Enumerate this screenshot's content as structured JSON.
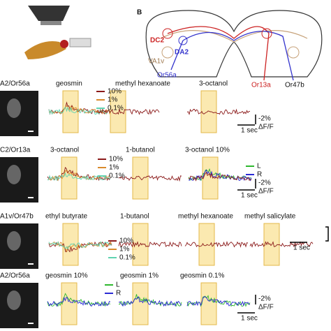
{
  "panel_b": {
    "letter": "B",
    "labels": [
      "DC2",
      "DA2",
      "VA1v",
      "Or56a",
      "Or13a",
      "Or47b"
    ]
  },
  "rows": [
    {
      "label": "A2/Or56a",
      "stimuli": [
        "geosmin",
        "methyl hexanoate",
        "3-octanol"
      ],
      "legend": [
        "10%",
        "1%",
        "0.1%"
      ],
      "scale": [
        "-2%",
        "ΔF/F"
      ],
      "time": "1 sec"
    },
    {
      "label": "C2/Or13a",
      "stimuli": [
        "3-octanol",
        "1-butanol",
        "3-octanol 10%"
      ],
      "legend": [
        "10%",
        "1%",
        "0.1%"
      ],
      "lr": [
        "L",
        "R"
      ],
      "scale": [
        "-2%",
        "ΔF/F"
      ],
      "time": "1 sec"
    },
    {
      "label": "A1v/Or47b",
      "stimuli": [
        "ethyl butyrate",
        "1-butanol",
        "methyl hexanoate",
        "methyl salicylate"
      ],
      "legend": [
        "10%",
        "1%",
        "0.1%"
      ],
      "time": "1 sec"
    },
    {
      "label": "A2/Or56a",
      "stimuli": [
        "geosmin 10%",
        "geosmin 1%",
        "geosmin 0.1%"
      ],
      "lr": [
        "L",
        "R"
      ],
      "scale": [
        "-2%",
        "ΔF/F"
      ],
      "time": "1 sec"
    }
  ]
}
